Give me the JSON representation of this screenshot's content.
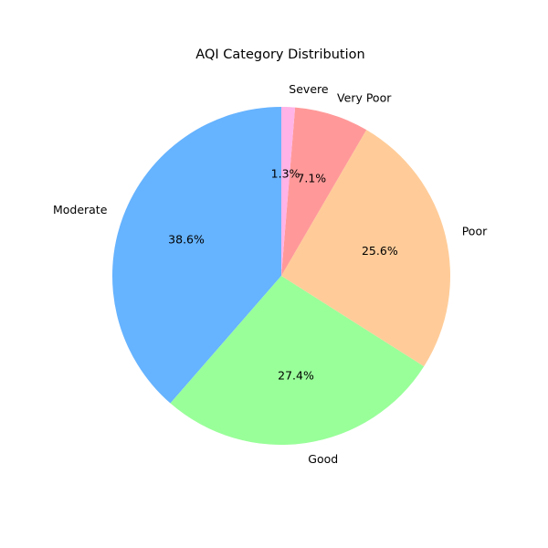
{
  "chart_data": {
    "type": "pie",
    "title": "AQI Category Distribution",
    "categories": [
      "Moderate",
      "Good",
      "Poor",
      "Very Poor",
      "Severe"
    ],
    "values": [
      38.6,
      27.4,
      25.6,
      7.1,
      1.3
    ],
    "value_labels": [
      "38.6%",
      "27.4%",
      "25.6%",
      "7.1%",
      "1.3%"
    ],
    "colors": [
      "#66b3ff",
      "#99ff99",
      "#ffcc99",
      "#ff9999",
      "#ffb3e6"
    ],
    "start_angle_deg": 90,
    "direction": "counterclockwise",
    "legend": "none"
  }
}
